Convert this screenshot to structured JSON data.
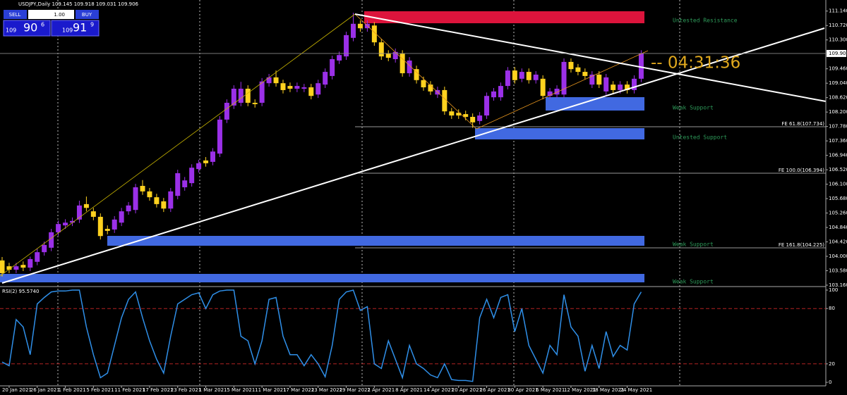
{
  "trade_panel": {
    "sell": "SELL",
    "lot": "1.00",
    "buy": "BUY",
    "bid": {
      "big": "109",
      "main": "90",
      "small": "6"
    },
    "ask": {
      "big": "109",
      "main": "91",
      "small": "9"
    }
  },
  "chart_data": [
    {
      "type": "candlestick",
      "title": "USDJPY,Daily  109.145 109.918 109.031 109.906",
      "up_color": "#9b30e8",
      "down_color": "#ffd21f",
      "categories": [
        null,
        "20 Jan 2021",
        null,
        null,
        null,
        "26 Jan 2021",
        null,
        null,
        null,
        "1 Feb 2021",
        null,
        null,
        null,
        "5 Feb 2021",
        null,
        null,
        null,
        "11 Feb 2021",
        null,
        null,
        null,
        "17 Feb 2021",
        null,
        null,
        null,
        "23 Feb 2021",
        null,
        null,
        null,
        "1 Mar 2021",
        null,
        null,
        null,
        "5 Mar 2021",
        null,
        null,
        null,
        "11 Mar 2021",
        null,
        null,
        null,
        "17 Mar 2021",
        null,
        null,
        null,
        "23 Mar 2021",
        null,
        null,
        null,
        "29 Mar 2021",
        null,
        null,
        null,
        "2 Apr 2021",
        null,
        null,
        null,
        "8 Apr 2021",
        null,
        null,
        null,
        "14 Apr 2021",
        null,
        null,
        null,
        "20 Apr 2021",
        null,
        null,
        null,
        "26 Apr 2021",
        null,
        null,
        null,
        "30 Apr 2021",
        null,
        null,
        null,
        "6 May 2021",
        null,
        null,
        null,
        "12 May 2021",
        null,
        null,
        null,
        "18 May 2021",
        null,
        null,
        null,
        "24 May 2021",
        null,
        null
      ],
      "open": [
        103.88,
        103.71,
        103.61,
        103.75,
        103.67,
        103.84,
        104.12,
        104.25,
        104.7,
        104.9,
        104.98,
        105.07,
        105.52,
        105.31,
        105.15,
        104.8,
        104.78,
        104.98,
        105.31,
        105.35,
        106.05,
        105.89,
        105.72,
        105.6,
        105.39,
        105.76,
        106.01,
        106.13,
        106.54,
        106.79,
        106.75,
        106.99,
        107.98,
        108.39,
        108.47,
        108.88,
        108.47,
        108.47,
        109.04,
        109.21,
        109.04,
        108.96,
        108.88,
        108.88,
        108.92,
        108.71,
        109.0,
        109.25,
        109.7,
        109.82,
        110.36,
        110.77,
        110.64,
        110.72,
        110.23,
        109.9,
        109.74,
        109.9,
        109.33,
        109.45,
        109.13,
        109.0,
        108.71,
        108.84,
        108.22,
        108.18,
        108.14,
        108.06,
        107.94,
        108.1,
        108.63,
        108.63,
        108.96,
        109.41,
        109.17,
        109.37,
        109.13,
        109.17,
        108.67,
        108.71,
        108.71,
        109.66,
        109.5,
        109.37,
        109.0,
        109.29,
        108.8,
        109.0,
        108.84,
        109.0,
        108.84,
        109.17
      ],
      "high": [
        103.98,
        103.81,
        103.81,
        103.85,
        103.99,
        104.22,
        104.43,
        104.8,
        105.04,
        105.08,
        105.13,
        105.62,
        105.74,
        105.41,
        105.25,
        104.9,
        105.17,
        105.41,
        105.58,
        106.11,
        106.22,
        105.99,
        105.82,
        105.7,
        105.99,
        106.52,
        106.31,
        106.68,
        106.81,
        106.89,
        107.15,
        108.08,
        108.57,
        108.98,
        109.08,
        108.98,
        108.57,
        109.19,
        109.31,
        109.41,
        109.14,
        109.06,
        109.06,
        109.02,
        109.02,
        109.14,
        109.47,
        109.84,
        109.96,
        110.54,
        111.09,
        110.87,
        110.87,
        110.82,
        110.33,
        110.0,
        110.05,
        110.0,
        109.8,
        109.55,
        109.23,
        109.1,
        108.94,
        108.94,
        108.32,
        108.28,
        108.24,
        108.16,
        108.2,
        108.77,
        108.9,
        109.06,
        109.51,
        109.51,
        109.47,
        109.47,
        109.39,
        109.27,
        108.9,
        108.98,
        109.76,
        109.76,
        109.6,
        109.47,
        109.39,
        109.39,
        109.31,
        109.1,
        109.1,
        109.1,
        109.27,
        110.0
      ],
      "low": [
        103.41,
        103.51,
        103.51,
        103.57,
        103.57,
        103.74,
        104.02,
        104.15,
        104.6,
        104.8,
        104.88,
        104.97,
        105.31,
        105.05,
        104.49,
        104.64,
        104.68,
        104.88,
        105.21,
        105.25,
        105.79,
        105.62,
        105.42,
        105.29,
        105.29,
        105.66,
        105.91,
        106.03,
        106.44,
        106.61,
        106.65,
        106.89,
        107.88,
        108.29,
        108.37,
        108.37,
        108.33,
        108.37,
        108.94,
        108.94,
        108.74,
        108.78,
        108.78,
        108.78,
        108.57,
        108.61,
        108.9,
        109.15,
        109.6,
        109.72,
        110.26,
        110.54,
        110.54,
        110.13,
        109.72,
        109.68,
        109.64,
        109.23,
        109.23,
        109.03,
        108.82,
        108.7,
        108.61,
        108.12,
        108.0,
        108.0,
        107.96,
        107.74,
        107.84,
        108.0,
        108.53,
        108.53,
        108.86,
        109.03,
        109.07,
        109.03,
        109.03,
        108.57,
        108.57,
        108.61,
        108.61,
        109.35,
        109.27,
        109.15,
        108.9,
        108.9,
        108.7,
        108.74,
        108.74,
        108.74,
        108.74,
        109.07
      ],
      "close": [
        103.51,
        103.61,
        103.71,
        103.67,
        103.92,
        104.12,
        104.33,
        104.7,
        104.94,
        104.98,
        105.03,
        105.48,
        105.41,
        105.15,
        104.59,
        104.74,
        105.07,
        105.31,
        105.48,
        106.01,
        105.89,
        105.72,
        105.52,
        105.39,
        105.89,
        106.42,
        106.21,
        106.58,
        106.71,
        106.71,
        107.05,
        107.98,
        108.47,
        108.88,
        108.88,
        108.47,
        108.43,
        109.09,
        109.21,
        109.04,
        108.84,
        108.88,
        108.96,
        108.92,
        108.67,
        109.04,
        109.37,
        109.74,
        109.86,
        110.44,
        110.77,
        110.64,
        110.77,
        110.23,
        109.82,
        109.78,
        109.95,
        109.33,
        109.7,
        109.13,
        108.92,
        108.8,
        108.84,
        108.22,
        108.1,
        108.1,
        108.06,
        107.9,
        108.1,
        108.67,
        108.8,
        108.96,
        109.41,
        109.13,
        109.37,
        109.13,
        109.29,
        108.67,
        108.8,
        108.88,
        109.66,
        109.45,
        109.37,
        109.25,
        109.29,
        109.0,
        109.21,
        108.84,
        109.0,
        108.84,
        109.17,
        109.91
      ],
      "ylim": [
        103.16,
        111.36
      ],
      "yticks": [
        {
          "value": 103.16,
          "label": "103.160"
        },
        {
          "value": 103.58,
          "label": "103.580"
        },
        {
          "value": 104.0,
          "label": "104.000"
        },
        {
          "value": 104.42,
          "label": "104.420"
        },
        {
          "value": 104.84,
          "label": "104.840"
        },
        {
          "value": 105.26,
          "label": "105.260"
        },
        {
          "value": 105.68,
          "label": "105.680"
        },
        {
          "value": 106.1,
          "label": "106.100"
        },
        {
          "value": 106.52,
          "label": "106.520"
        },
        {
          "value": 106.94,
          "label": "106.940"
        },
        {
          "value": 107.36,
          "label": "107.360"
        },
        {
          "value": 107.78,
          "label": "107.780"
        },
        {
          "value": 108.2,
          "label": "108.200"
        },
        {
          "value": 108.62,
          "label": "108.620"
        },
        {
          "value": 109.04,
          "label": "109.040"
        },
        {
          "value": 109.46,
          "label": "109.460"
        },
        {
          "value": 110.3,
          "label": "110.300"
        },
        {
          "value": 110.72,
          "label": "110.720"
        },
        {
          "value": 111.14,
          "label": "111.140"
        }
      ],
      "last_price": {
        "value": 109.906,
        "label": "109.906"
      },
      "annotations": [
        "Untested Resistance",
        "Weak Support",
        "Untested Support",
        "Weak Support",
        "Weak Support",
        "FE 61.8(107.734)",
        "FE 100.0(106.394)",
        "FE 161.8(104.225)",
        "-- 04:31:36"
      ]
    },
    {
      "type": "line",
      "title": "RSI(2) 95.5740",
      "color": "#2f8fe8",
      "level_color": "#b22222",
      "values": [
        22,
        18,
        68,
        60,
        30,
        85,
        92,
        98,
        99,
        99,
        100,
        100,
        60,
        30,
        5,
        10,
        40,
        70,
        90,
        98,
        70,
        45,
        25,
        10,
        50,
        85,
        90,
        95,
        97,
        80,
        95,
        99,
        100,
        100,
        50,
        45,
        20,
        45,
        90,
        92,
        50,
        30,
        30,
        18,
        30,
        20,
        6,
        40,
        90,
        98,
        100,
        78,
        82,
        20,
        15,
        45,
        25,
        5,
        40,
        20,
        15,
        8,
        5,
        20,
        3,
        2,
        2,
        1,
        70,
        90,
        70,
        92,
        95,
        55,
        80,
        40,
        25,
        10,
        40,
        30,
        95,
        60,
        50,
        12,
        40,
        15,
        55,
        28,
        40,
        35,
        85,
        98
      ],
      "ylim": [
        0,
        100
      ],
      "yticks": [
        0,
        20,
        80,
        100
      ],
      "levels": [
        20,
        80
      ]
    }
  ]
}
